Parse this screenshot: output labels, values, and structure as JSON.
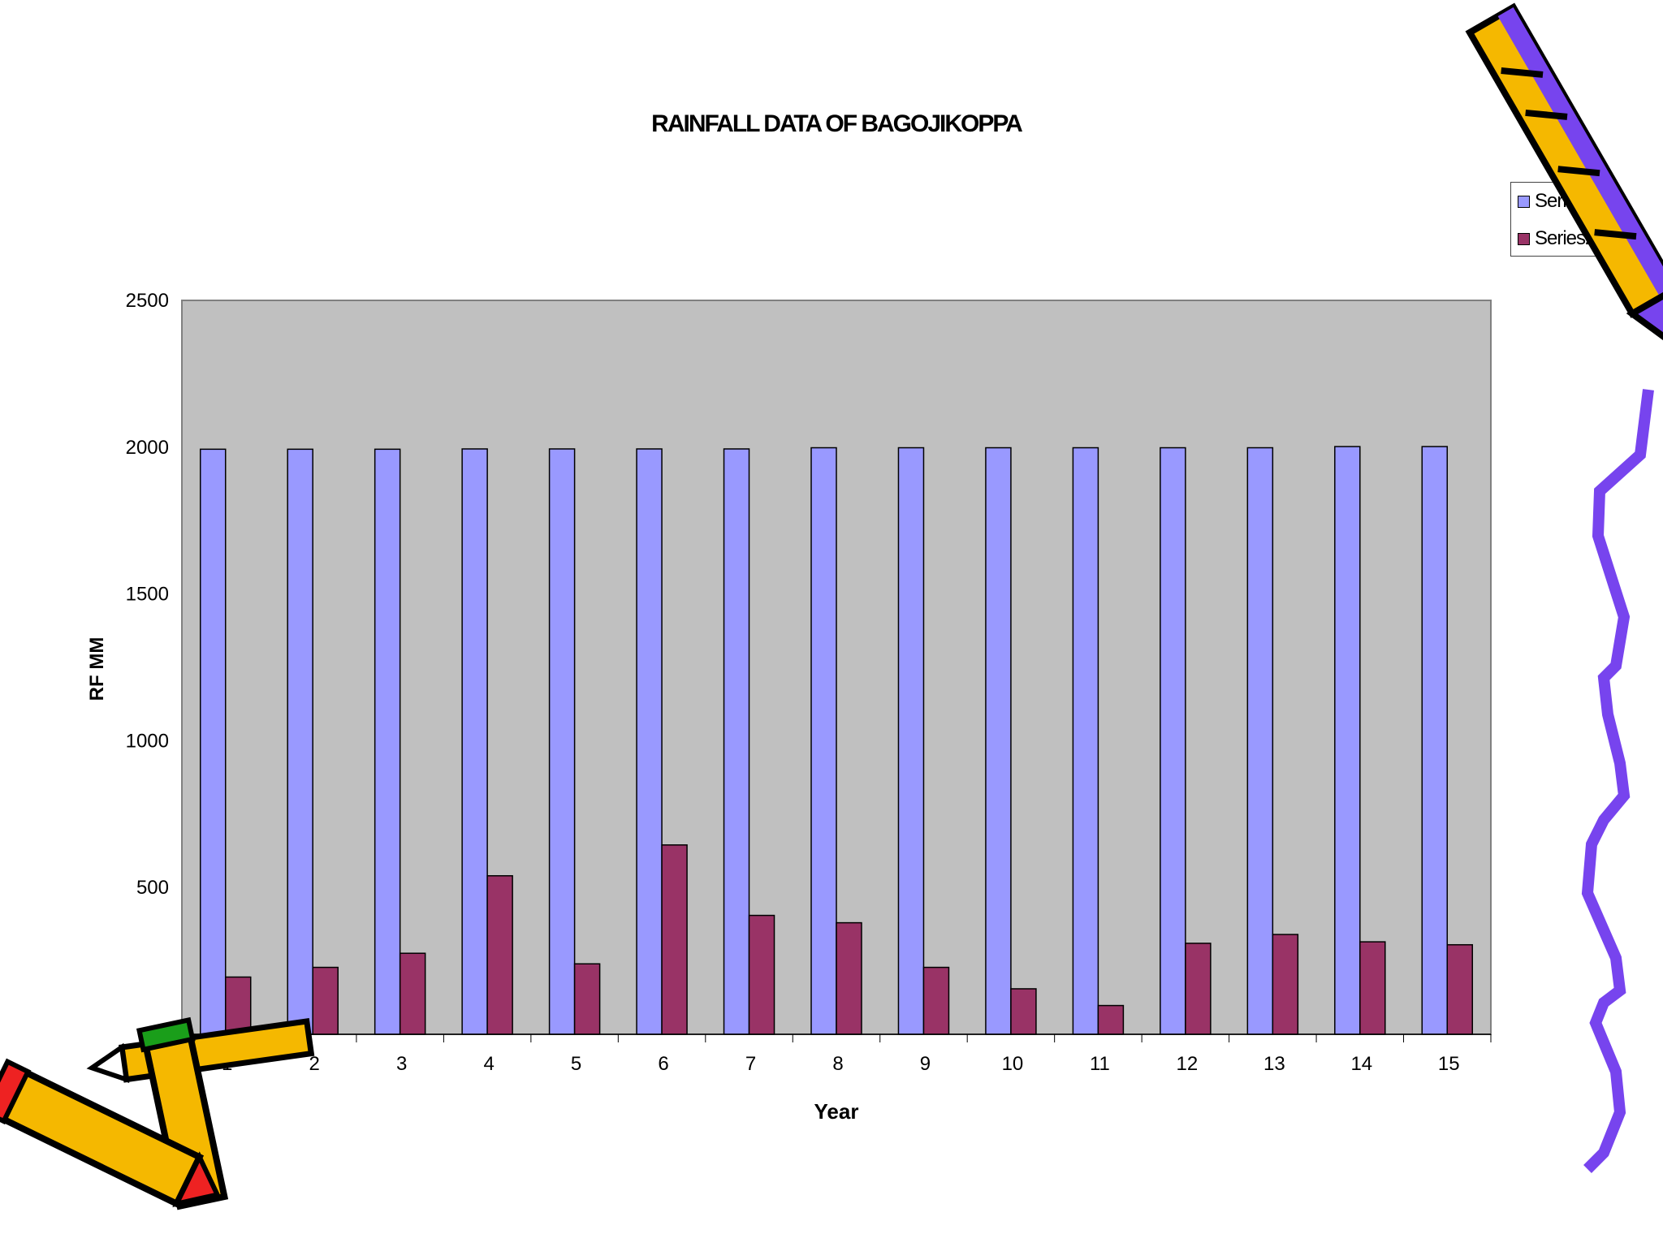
{
  "chart_data": {
    "type": "bar",
    "title": "RAINFALL DATA OF BAGOJIKOPPA",
    "xlabel": "Year",
    "ylabel": "RF MM",
    "categories": [
      "1",
      "2",
      "3",
      "4",
      "5",
      "6",
      "7",
      "8",
      "9",
      "10",
      "11",
      "12",
      "13",
      "14",
      "15"
    ],
    "series": [
      {
        "name": "Series1",
        "values": [
          1993,
          1993,
          1993,
          1994,
          1994,
          1994,
          1994,
          1998,
          1998,
          1998,
          1998,
          1998,
          1998,
          2002,
          2002
        ]
      },
      {
        "name": "Series2",
        "values": [
          195,
          228,
          276,
          540,
          240,
          645,
          405,
          380,
          228,
          155,
          98,
          310,
          340,
          315,
          305
        ]
      }
    ],
    "ylim": [
      0,
      2500
    ],
    "yticks": [
      0,
      500,
      1000,
      1500,
      2000,
      2500
    ],
    "grid": false,
    "legend_position": "top-right",
    "plot_background": "#c0c0c0",
    "colors": {
      "Series1": "#9999ff",
      "Series2": "#993366"
    }
  },
  "decorations": [
    "pencil-clipart-top-right",
    "pencils-clipart-bottom-left",
    "purple-squiggle-line-right"
  ]
}
